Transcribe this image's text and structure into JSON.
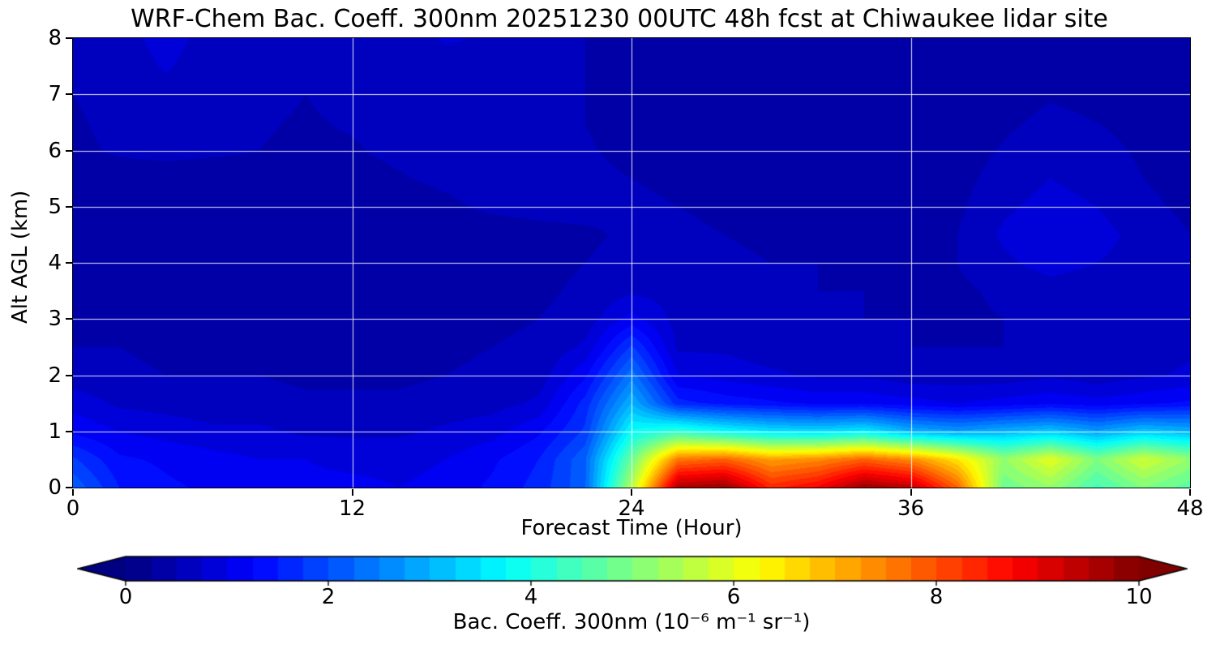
{
  "figure": {
    "background": "#ffffff"
  },
  "chart_data": {
    "type": "heatmap",
    "title": "WRF-Chem Bac. Coeff. 300nm  20251230 00UTC 48h fcst at Chiwaukee lidar site",
    "xlabel": "Forecast Time (Hour)",
    "ylabel": "Alt AGL (km)",
    "xlim": [
      0,
      48
    ],
    "ylim": [
      0,
      8
    ],
    "xticks": [
      0,
      12,
      24,
      36,
      48
    ],
    "yticks": [
      0,
      1,
      2,
      3,
      4,
      5,
      6,
      7,
      8
    ],
    "grid": true,
    "grid_color": "#ffffff",
    "colormap": "jet",
    "levels_step": 0.25,
    "colorbar": {
      "min": 0,
      "max": 10,
      "ticks": [
        0,
        2,
        4,
        6,
        8,
        10
      ],
      "extend": "both",
      "label": "Bac. Coeff. 300nm  (10⁻⁶ m⁻¹ sr⁻¹)"
    },
    "x": [
      0,
      2,
      4,
      6,
      8,
      10,
      12,
      14,
      16,
      18,
      20,
      22,
      24,
      26,
      28,
      30,
      32,
      34,
      36,
      38,
      40,
      42,
      44,
      46,
      48
    ],
    "y": [
      0,
      0.5,
      1,
      1.5,
      2,
      2.5,
      3,
      3.5,
      4,
      4.5,
      5,
      5.5,
      6,
      6.5,
      7,
      7.5,
      8
    ],
    "values": [
      [
        2.2,
        1.5,
        1.3,
        1.2,
        1.2,
        1.1,
        1.1,
        1.0,
        1.1,
        1.3,
        1.6,
        2.2,
        5.5,
        9.6,
        9.8,
        8.4,
        8.8,
        9.8,
        9.4,
        7.8,
        4.8,
        5.2,
        4.4,
        5.0,
        4.6
      ],
      [
        1.8,
        1.3,
        1.2,
        1.1,
        1.0,
        1.0,
        0.9,
        0.9,
        1.0,
        1.2,
        1.5,
        2.2,
        4.8,
        7.6,
        7.8,
        7.2,
        7.4,
        7.8,
        7.4,
        6.5,
        5.2,
        6.0,
        5.0,
        5.8,
        5.2
      ],
      [
        1.2,
        1.0,
        0.9,
        0.8,
        0.8,
        0.7,
        0.7,
        0.7,
        0.8,
        0.9,
        1.2,
        1.8,
        3.8,
        4.2,
        3.8,
        3.5,
        3.4,
        3.6,
        3.0,
        2.8,
        3.0,
        3.2,
        2.8,
        3.2,
        3.0
      ],
      [
        0.9,
        0.7,
        0.65,
        0.6,
        0.6,
        0.55,
        0.55,
        0.55,
        0.6,
        0.65,
        0.8,
        1.6,
        3.0,
        1.6,
        1.4,
        1.3,
        1.2,
        1.2,
        1.1,
        1.0,
        1.1,
        1.2,
        1.1,
        1.2,
        1.3
      ],
      [
        0.6,
        0.55,
        0.5,
        0.5,
        0.5,
        0.45,
        0.45,
        0.45,
        0.5,
        0.55,
        0.6,
        1.2,
        2.4,
        1.0,
        0.9,
        0.8,
        0.7,
        0.7,
        0.6,
        0.6,
        0.6,
        0.7,
        0.6,
        0.7,
        0.8
      ],
      [
        0.5,
        0.5,
        0.45,
        0.45,
        0.45,
        0.4,
        0.4,
        0.4,
        0.45,
        0.5,
        0.55,
        0.8,
        1.8,
        0.7,
        0.7,
        0.6,
        0.6,
        0.6,
        0.5,
        0.5,
        0.5,
        0.6,
        0.55,
        0.6,
        0.7
      ],
      [
        0.45,
        0.45,
        0.4,
        0.4,
        0.4,
        0.4,
        0.4,
        0.4,
        0.4,
        0.45,
        0.5,
        0.6,
        1.1,
        0.65,
        0.6,
        0.55,
        0.55,
        0.5,
        0.5,
        0.45,
        0.5,
        0.55,
        0.5,
        0.55,
        0.6
      ],
      [
        0.4,
        0.4,
        0.38,
        0.38,
        0.38,
        0.36,
        0.36,
        0.36,
        0.38,
        0.4,
        0.45,
        0.55,
        0.7,
        0.65,
        0.6,
        0.55,
        0.5,
        0.5,
        0.45,
        0.45,
        0.55,
        0.65,
        0.6,
        0.6,
        0.65
      ],
      [
        0.38,
        0.38,
        0.36,
        0.36,
        0.36,
        0.35,
        0.35,
        0.35,
        0.36,
        0.38,
        0.42,
        0.5,
        0.6,
        0.6,
        0.55,
        0.5,
        0.5,
        0.45,
        0.45,
        0.5,
        0.7,
        0.85,
        0.75,
        0.65,
        0.55
      ],
      [
        0.36,
        0.36,
        0.35,
        0.35,
        0.35,
        0.34,
        0.34,
        0.34,
        0.35,
        0.36,
        0.4,
        0.45,
        0.55,
        0.55,
        0.5,
        0.45,
        0.45,
        0.4,
        0.4,
        0.5,
        0.8,
        0.95,
        0.85,
        0.65,
        0.5
      ],
      [
        0.35,
        0.35,
        0.34,
        0.34,
        0.34,
        0.34,
        0.35,
        0.38,
        0.45,
        0.55,
        0.6,
        0.6,
        0.55,
        0.5,
        0.45,
        0.4,
        0.38,
        0.38,
        0.38,
        0.45,
        0.7,
        0.85,
        0.75,
        0.55,
        0.45
      ],
      [
        0.35,
        0.34,
        0.34,
        0.34,
        0.36,
        0.38,
        0.42,
        0.48,
        0.55,
        0.6,
        0.6,
        0.55,
        0.5,
        0.45,
        0.4,
        0.38,
        0.36,
        0.36,
        0.36,
        0.42,
        0.6,
        0.75,
        0.65,
        0.5,
        0.42
      ],
      [
        0.42,
        0.55,
        0.6,
        0.55,
        0.5,
        0.46,
        0.48,
        0.55,
        0.6,
        0.65,
        0.6,
        0.52,
        0.45,
        0.4,
        0.38,
        0.36,
        0.35,
        0.35,
        0.35,
        0.4,
        0.52,
        0.65,
        0.58,
        0.46,
        0.4
      ],
      [
        0.45,
        0.6,
        0.68,
        0.6,
        0.52,
        0.48,
        0.52,
        0.58,
        0.64,
        0.66,
        0.6,
        0.5,
        0.42,
        0.38,
        0.36,
        0.35,
        0.34,
        0.34,
        0.34,
        0.38,
        0.46,
        0.55,
        0.5,
        0.42,
        0.38
      ],
      [
        0.5,
        0.65,
        0.72,
        0.65,
        0.56,
        0.5,
        0.56,
        0.62,
        0.68,
        0.68,
        0.62,
        0.5,
        0.42,
        0.38,
        0.36,
        0.34,
        0.34,
        0.33,
        0.33,
        0.36,
        0.42,
        0.48,
        0.44,
        0.4,
        0.36
      ],
      [
        0.55,
        0.7,
        0.76,
        0.7,
        0.6,
        0.55,
        0.6,
        0.66,
        0.72,
        0.72,
        0.64,
        0.5,
        0.42,
        0.38,
        0.35,
        0.34,
        0.33,
        0.33,
        0.33,
        0.35,
        0.4,
        0.44,
        0.4,
        0.37,
        0.35
      ],
      [
        0.6,
        0.72,
        0.78,
        0.72,
        0.64,
        0.58,
        0.64,
        0.7,
        0.76,
        0.74,
        0.66,
        0.5,
        0.42,
        0.38,
        0.35,
        0.33,
        0.33,
        0.32,
        0.32,
        0.34,
        0.38,
        0.42,
        0.38,
        0.36,
        0.34
      ]
    ]
  }
}
